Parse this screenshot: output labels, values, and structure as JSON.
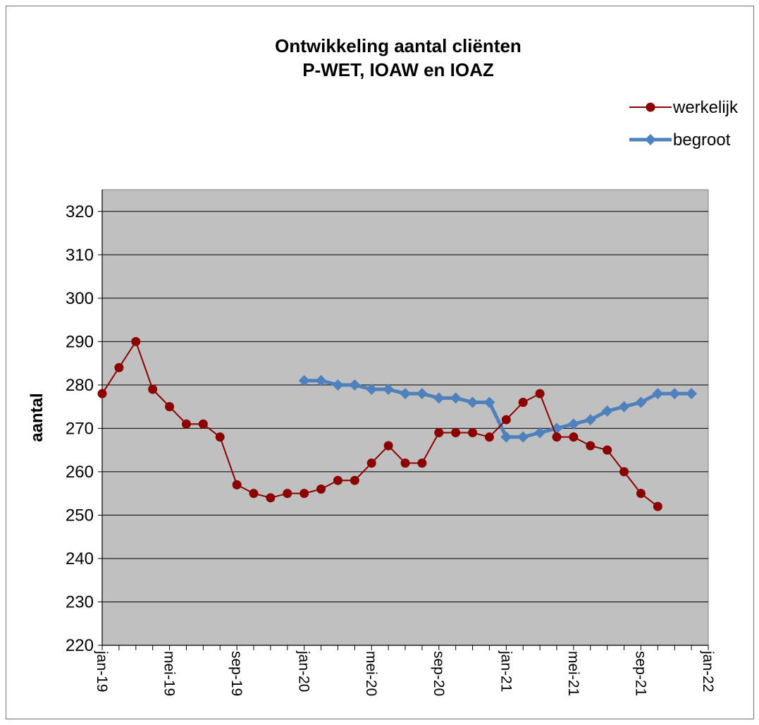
{
  "chart_data": {
    "type": "line",
    "title": [
      "Ontwikkeling aantal cliënten",
      "P-WET, IOAW en IOAZ"
    ],
    "ylabel": "aantal",
    "xlabel": "",
    "ylim": [
      220,
      325
    ],
    "yticks": [
      220,
      230,
      240,
      250,
      260,
      270,
      280,
      290,
      300,
      310,
      320
    ],
    "xlim_index": [
      0,
      36
    ],
    "x_tick_labels": [
      {
        "index": 0,
        "label": "jan-19"
      },
      {
        "index": 4,
        "label": "mei-19"
      },
      {
        "index": 8,
        "label": "sep-19"
      },
      {
        "index": 12,
        "label": "jan-20"
      },
      {
        "index": 16,
        "label": "mei-20"
      },
      {
        "index": 20,
        "label": "sep-20"
      },
      {
        "index": 24,
        "label": "jan-21"
      },
      {
        "index": 28,
        "label": "mei-21"
      },
      {
        "index": 32,
        "label": "sep-21"
      },
      {
        "index": 36,
        "label": "jan-22"
      }
    ],
    "grid": true,
    "legend_position": "top-right",
    "series": [
      {
        "name": "werkelijk",
        "color": "#8b0000",
        "marker": "circle",
        "start_index": 0,
        "values": [
          278,
          284,
          290,
          279,
          275,
          271,
          271,
          268,
          257,
          255,
          254,
          255,
          255,
          256,
          258,
          258,
          262,
          266,
          262,
          262,
          269,
          269,
          269,
          268,
          272,
          276,
          278,
          268,
          268,
          266,
          265,
          260,
          255,
          252
        ]
      },
      {
        "name": "begroot",
        "color": "#4f81bd",
        "marker": "diamond",
        "start_index": 12,
        "values": [
          281,
          281,
          280,
          280,
          279,
          279,
          278,
          278,
          277,
          277,
          276,
          276,
          268,
          268,
          269,
          270,
          271,
          272,
          274,
          275,
          276,
          278,
          278,
          278
        ]
      }
    ]
  }
}
